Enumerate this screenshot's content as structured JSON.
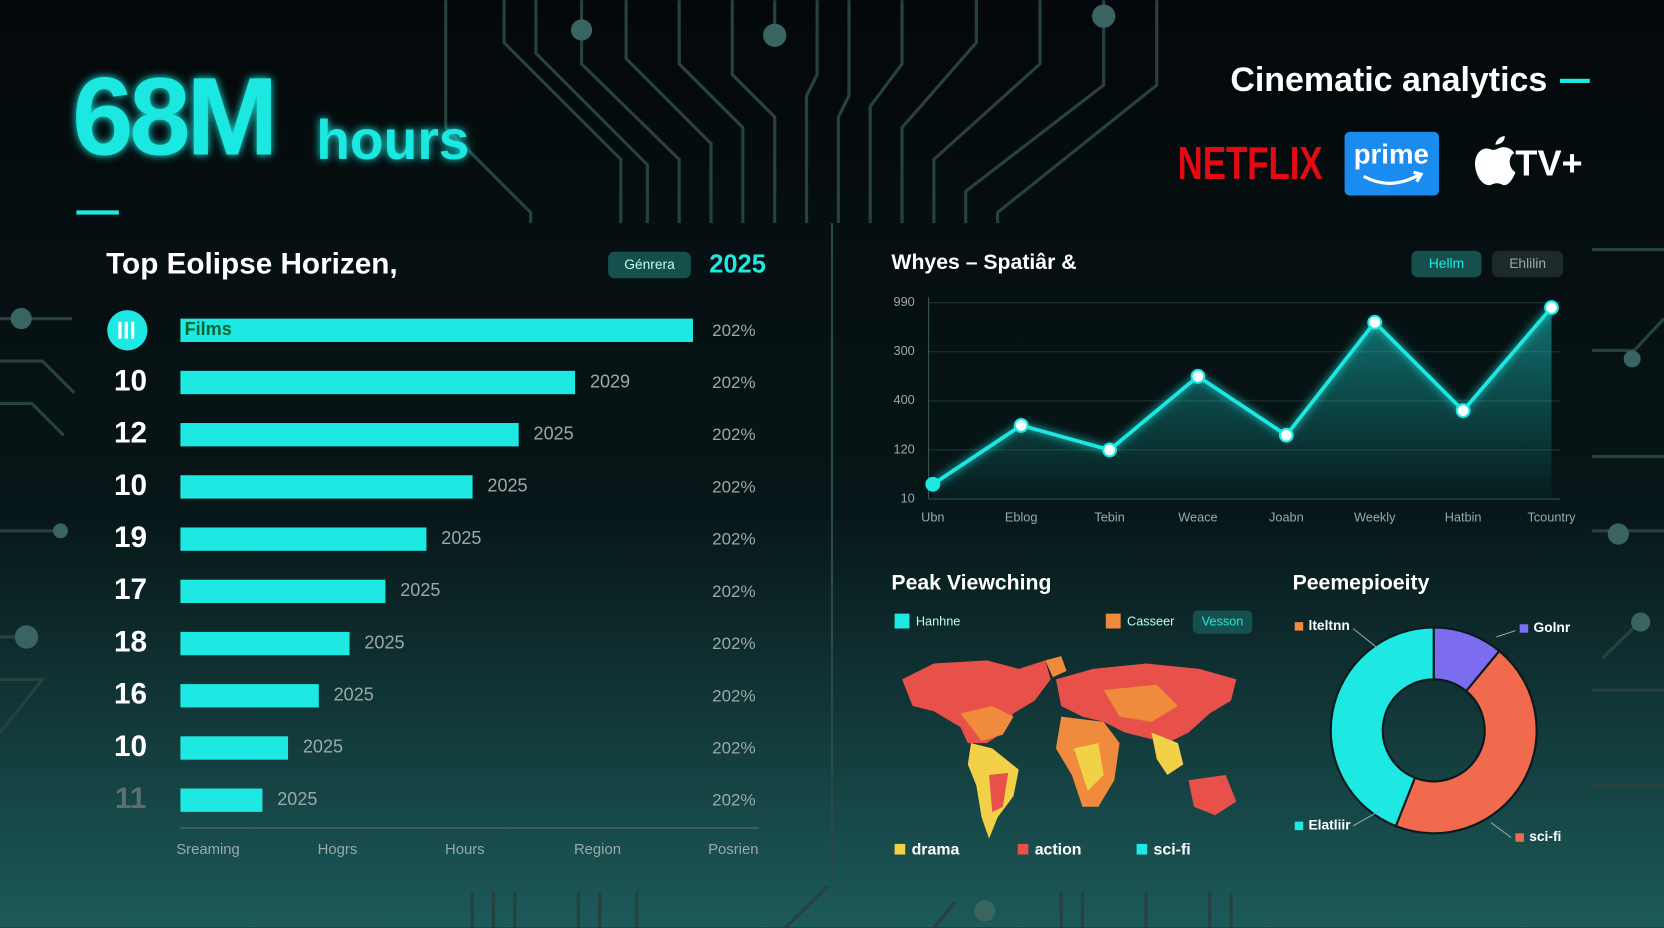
{
  "header": {
    "headline": "68M",
    "headline_unit": "hours",
    "brand": "Cinematic analytics",
    "logos": [
      "NETFLIX",
      "prime",
      "TV+"
    ]
  },
  "chart_data": [
    {
      "type": "bar",
      "title": "Top Eolipse Horizen,",
      "badge": "Génrera",
      "year": "2025",
      "categories": [
        null,
        "10",
        "12",
        "10",
        "19",
        "17",
        "18",
        "16",
        "10",
        "11"
      ],
      "values": [
        100,
        77,
        66,
        57,
        48,
        40,
        33,
        27,
        21,
        16
      ],
      "bar_labels": [
        "Films",
        "2029",
        "2025",
        "2025",
        "2025",
        "2025",
        "2025",
        "2025",
        "2025",
        "2025"
      ],
      "right_labels": [
        "202%",
        "202%",
        "202%",
        "202%",
        "202%",
        "202%",
        "202%",
        "202%",
        "202%",
        "202%"
      ],
      "x_labels": [
        "Sreaming",
        "Hogrs",
        "Hours",
        "Region",
        "Posrien"
      ],
      "color": "#1ee8e2"
    },
    {
      "type": "line",
      "title": "Whyes – Spatiâr &",
      "buttons": [
        "Hellm",
        "Ehlilin"
      ],
      "categories": [
        "Ubn",
        "Eblog",
        "Tebin",
        "Weace",
        "Joabn",
        "Weekly",
        "Hatbin",
        "Tcountry"
      ],
      "values": [
        0.3,
        1.5,
        1.0,
        2.5,
        1.3,
        3.6,
        1.8,
        3.9
      ],
      "yticks": [
        {
          "value": 4,
          "label": "990"
        },
        {
          "value": 3,
          "label": "300"
        },
        {
          "value": 2,
          "label": "400"
        },
        {
          "value": 1,
          "label": "120"
        },
        {
          "value": 0,
          "label": "10"
        }
      ],
      "grid": true,
      "color": "#1ee8e2"
    },
    {
      "type": "map",
      "title": "Peak Viewching",
      "chips": [
        {
          "name": "Hanhne",
          "color": "#1ee8e2"
        },
        {
          "name": "Casseer",
          "color": "#f08a3c"
        },
        {
          "name": "Vesson",
          "color": "#15504d"
        }
      ],
      "series": [
        {
          "name": "drama",
          "color": "#f2d048"
        },
        {
          "name": "action",
          "color": "#e8504a"
        },
        {
          "name": "sci-fi",
          "color": "#1ee8e2"
        }
      ]
    },
    {
      "type": "donut",
      "title": "Peemepioeity",
      "categories": [
        "lteltnn",
        "Golnr",
        "sci-fi",
        "Elatliir"
      ],
      "colors": [
        "#f08a3c",
        "#7c6cf0",
        "#f26a4e",
        "#1ee8e2"
      ],
      "values": [
        null,
        11,
        45,
        44
      ]
    }
  ]
}
